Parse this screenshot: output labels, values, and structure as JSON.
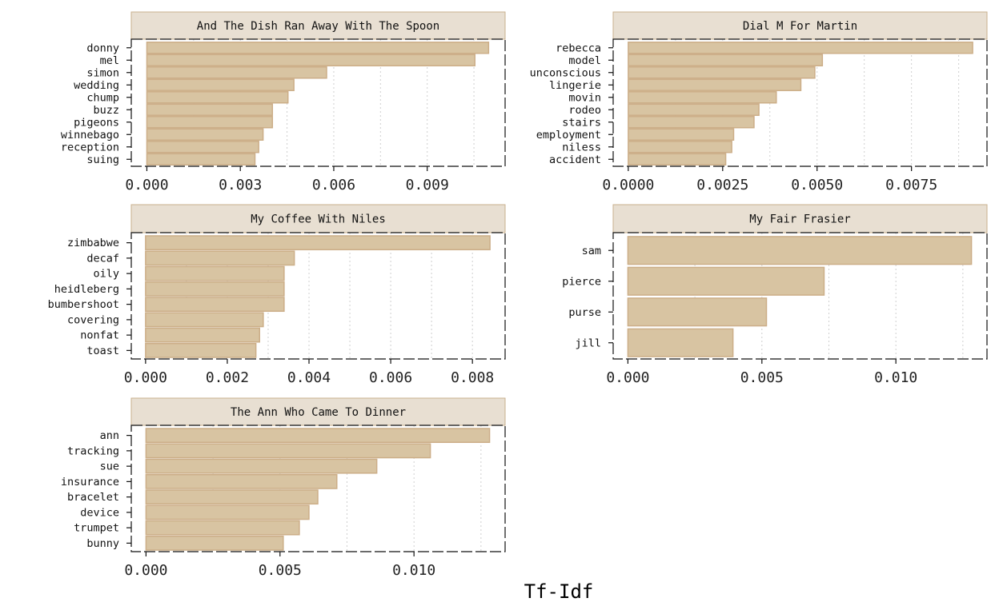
{
  "colors": {
    "bar_fill": "#d8c4a2",
    "bar_stroke": "#ccae88",
    "strip_fill": "#e8dfd2"
  },
  "chart_data": {
    "type": "bar",
    "orientation": "horizontal",
    "xlabel": "Tf-Idf",
    "facets": [
      {
        "title": "And The Dish Ran Away With The Spoon",
        "categories": [
          "donny",
          "mel",
          "simon",
          "wedding",
          "chump",
          "buzz",
          "pigeons",
          "winnebago",
          "reception",
          "suing"
        ],
        "values": [
          0.01097,
          0.01053,
          0.00577,
          0.00472,
          0.00453,
          0.00403,
          0.00403,
          0.00373,
          0.00359,
          0.00347
        ],
        "xlim": [
          -0.0005,
          0.0115
        ],
        "ticks": [
          0,
          0.003,
          0.006,
          0.009
        ],
        "tick_labels": [
          "0.000",
          "0.003",
          "0.006",
          "0.009"
        ]
      },
      {
        "title": "Dial M For Martin",
        "categories": [
          "rebecca",
          "model",
          "unconscious",
          "lingerie",
          "movin",
          "rodeo",
          "stairs",
          "employment",
          "niless",
          "accident"
        ],
        "values": [
          0.00912,
          0.00514,
          0.00494,
          0.00457,
          0.00392,
          0.00346,
          0.00333,
          0.00279,
          0.00274,
          0.00258
        ],
        "xlim": [
          -0.0004,
          0.0095
        ],
        "ticks": [
          0,
          0.0025,
          0.005,
          0.0075
        ],
        "tick_labels": [
          "0.0000",
          "0.0025",
          "0.0050",
          "0.0075"
        ]
      },
      {
        "title": "My Coffee With Niles",
        "categories": [
          "zimbabwe",
          "decaf",
          "oily",
          "heidleberg",
          "bumbershoot",
          "covering",
          "nonfat",
          "toast"
        ],
        "values": [
          0.00843,
          0.00364,
          0.00339,
          0.00339,
          0.00339,
          0.00288,
          0.00279,
          0.0027
        ],
        "xlim": [
          -0.00035,
          0.0088
        ],
        "ticks": [
          0,
          0.002,
          0.004,
          0.006,
          0.008
        ],
        "tick_labels": [
          "0.000",
          "0.002",
          "0.004",
          "0.006",
          "0.008"
        ]
      },
      {
        "title": "My Fair Frasier",
        "categories": [
          "sam",
          "pierce",
          "purse",
          "jill"
        ],
        "values": [
          0.01282,
          0.00732,
          0.00517,
          0.00392
        ],
        "xlim": [
          -0.00055,
          0.0134
        ],
        "ticks": [
          0,
          0.005,
          0.01
        ],
        "tick_labels": [
          "0.000",
          "0.005",
          "0.010"
        ]
      },
      {
        "title": "The Ann Who Came To Dinner",
        "categories": [
          "ann",
          "tracking",
          "sue",
          "insurance",
          "bracelet",
          "device",
          "trumpet",
          "bunny"
        ],
        "values": [
          0.01282,
          0.01061,
          0.00861,
          0.00712,
          0.00641,
          0.00608,
          0.00572,
          0.00512
        ],
        "xlim": [
          -0.00055,
          0.0134
        ],
        "ticks": [
          0,
          0.005,
          0.01
        ],
        "tick_labels": [
          "0.000",
          "0.005",
          "0.010"
        ]
      }
    ]
  }
}
